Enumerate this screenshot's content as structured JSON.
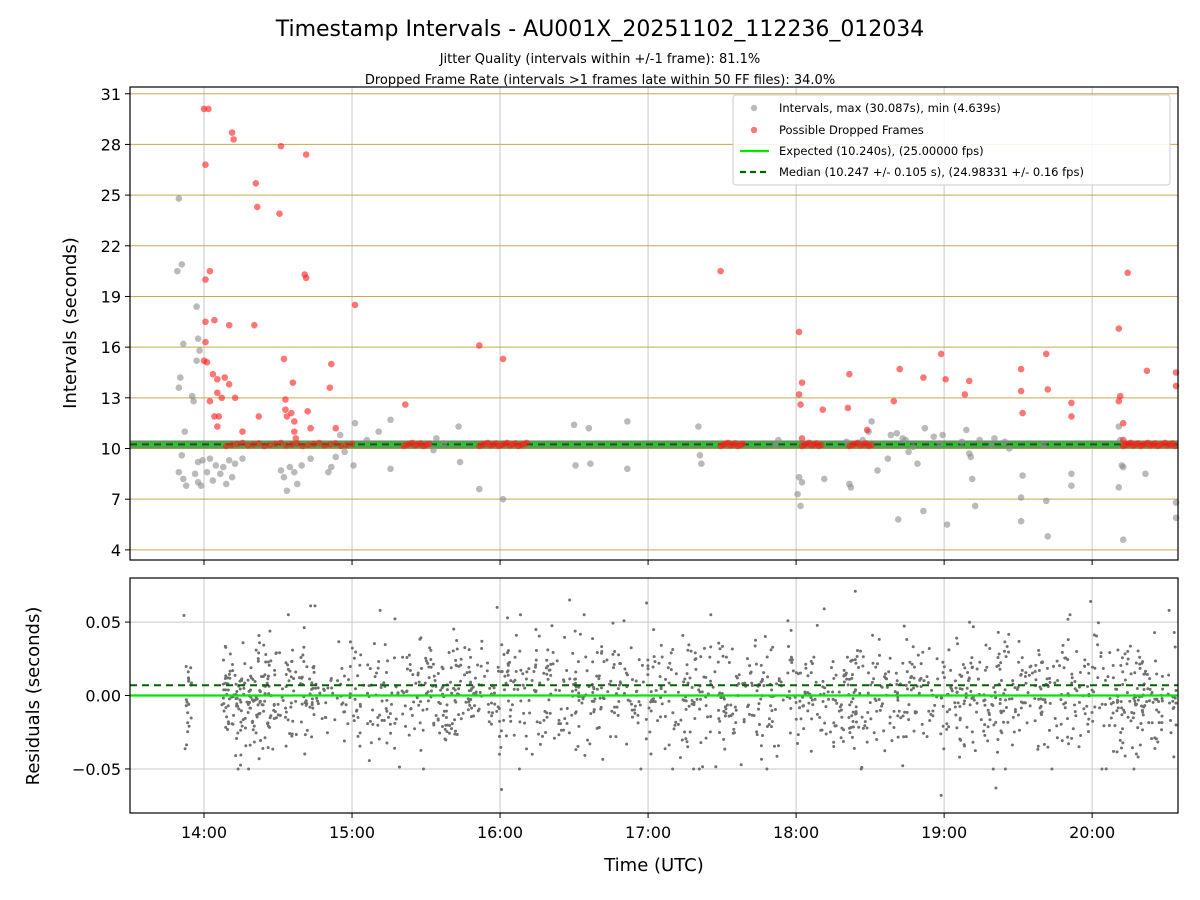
{
  "chart_data": {
    "type": "scatter",
    "title": "Timestamp Intervals - AU001X_20251102_112236_012034",
    "subtitle_lines": [
      "Jitter Quality (intervals within +/-1 frame): 81.1%",
      "Dropped Frame Rate (intervals >1 frames late within 50 FF files): 34.0%"
    ],
    "xlabel": "Time (UTC)",
    "x_unit": "hours UTC",
    "xlim": [
      13.5,
      20.58
    ],
    "x_ticks": [
      {
        "value": 14,
        "label": "14:00"
      },
      {
        "value": 15,
        "label": "15:00"
      },
      {
        "value": 16,
        "label": "16:00"
      },
      {
        "value": 17,
        "label": "17:00"
      },
      {
        "value": 18,
        "label": "18:00"
      },
      {
        "value": 19,
        "label": "19:00"
      },
      {
        "value": 20,
        "label": "20:00"
      }
    ],
    "top": {
      "ylabel": "Intervals (seconds)",
      "ylim": [
        3.4,
        31.4
      ],
      "y_ticks": [
        4,
        7,
        10,
        13,
        16,
        19,
        22,
        25,
        28,
        31
      ],
      "expected": 10.24,
      "median": 10.247,
      "legend": [
        "Intervals, max (30.087s), min (4.639s)",
        "Possible Dropped Frames",
        "Expected (10.240s), (25.00000 fps)",
        "Median (10.247 +/- 0.105 s), (24.98331 +/- 0.16 fps)"
      ],
      "interval_points": [
        [
          13.83,
          24.8
        ],
        [
          13.85,
          20.9
        ],
        [
          13.82,
          20.5
        ],
        [
          13.86,
          16.2
        ],
        [
          13.84,
          14.2
        ],
        [
          13.83,
          13.6
        ],
        [
          13.87,
          11.0
        ],
        [
          13.85,
          9.6
        ],
        [
          13.83,
          8.6
        ],
        [
          13.86,
          8.2
        ],
        [
          13.88,
          7.8
        ],
        [
          13.92,
          13.1
        ],
        [
          13.93,
          12.8
        ],
        [
          13.95,
          18.4
        ],
        [
          13.96,
          16.5
        ],
        [
          13.97,
          15.8
        ],
        [
          13.95,
          15.2
        ],
        [
          13.96,
          9.2
        ],
        [
          13.94,
          8.5
        ],
        [
          13.96,
          8.0
        ],
        [
          13.98,
          7.8
        ],
        [
          13.99,
          9.3
        ],
        [
          14.02,
          8.6
        ],
        [
          14.04,
          9.4
        ],
        [
          14.06,
          8.1
        ],
        [
          14.08,
          9.0
        ],
        [
          14.11,
          8.5
        ],
        [
          14.13,
          8.9
        ],
        [
          14.15,
          7.9
        ],
        [
          14.17,
          9.3
        ],
        [
          14.19,
          8.3
        ],
        [
          14.21,
          9.1
        ],
        [
          14.26,
          9.4
        ],
        [
          14.52,
          8.7
        ],
        [
          14.54,
          8.3
        ],
        [
          14.56,
          7.5
        ],
        [
          14.58,
          8.9
        ],
        [
          14.61,
          8.6
        ],
        [
          14.63,
          7.9
        ],
        [
          14.66,
          9.0
        ],
        [
          14.72,
          9.4
        ],
        [
          14.84,
          8.6
        ],
        [
          14.86,
          8.9
        ],
        [
          14.89,
          9.5
        ],
        [
          14.92,
          10.8
        ],
        [
          14.95,
          9.8
        ],
        [
          15.01,
          9.0
        ],
        [
          15.02,
          11.5
        ],
        [
          15.1,
          10.5
        ],
        [
          15.18,
          11.0
        ],
        [
          15.26,
          11.7
        ],
        [
          15.26,
          8.8
        ],
        [
          15.52,
          10.2
        ],
        [
          15.55,
          9.9
        ],
        [
          15.57,
          10.6
        ],
        [
          15.62,
          10.3
        ],
        [
          15.72,
          11.3
        ],
        [
          15.73,
          9.2
        ],
        [
          15.86,
          7.6
        ],
        [
          16.02,
          7.0
        ],
        [
          16.5,
          11.4
        ],
        [
          16.51,
          9.0
        ],
        [
          16.6,
          11.2
        ],
        [
          16.61,
          9.1
        ],
        [
          16.86,
          11.6
        ],
        [
          16.86,
          8.8
        ],
        [
          17.34,
          11.3
        ],
        [
          17.35,
          9.6
        ],
        [
          17.36,
          9.1
        ],
        [
          17.86,
          10.2
        ],
        [
          17.88,
          10.5
        ],
        [
          18.01,
          7.3
        ],
        [
          18.02,
          8.3
        ],
        [
          18.03,
          6.6
        ],
        [
          18.04,
          8.0
        ],
        [
          18.19,
          8.2
        ],
        [
          18.34,
          10.4
        ],
        [
          18.36,
          7.9
        ],
        [
          18.37,
          7.7
        ],
        [
          18.45,
          10.5
        ],
        [
          18.49,
          11.0
        ],
        [
          18.51,
          11.6
        ],
        [
          18.55,
          8.7
        ],
        [
          18.62,
          9.4
        ],
        [
          18.64,
          10.8
        ],
        [
          18.68,
          10.9
        ],
        [
          18.69,
          5.8
        ],
        [
          18.72,
          10.6
        ],
        [
          18.74,
          10.5
        ],
        [
          18.76,
          9.8
        ],
        [
          18.79,
          10.1
        ],
        [
          18.82,
          9.1
        ],
        [
          18.86,
          6.3
        ],
        [
          18.87,
          11.2
        ],
        [
          18.93,
          10.7
        ],
        [
          18.97,
          10.3
        ],
        [
          18.99,
          10.8
        ],
        [
          19.02,
          5.5
        ],
        [
          19.12,
          10.4
        ],
        [
          19.15,
          11.1
        ],
        [
          19.17,
          9.7
        ],
        [
          19.18,
          9.5
        ],
        [
          19.19,
          8.2
        ],
        [
          19.21,
          6.6
        ],
        [
          19.24,
          10.5
        ],
        [
          19.32,
          10.2
        ],
        [
          19.34,
          10.6
        ],
        [
          19.41,
          10.4
        ],
        [
          19.44,
          10.0
        ],
        [
          19.52,
          7.1
        ],
        [
          19.52,
          5.7
        ],
        [
          19.53,
          8.4
        ],
        [
          19.67,
          10.2
        ],
        [
          19.69,
          6.9
        ],
        [
          19.7,
          4.8
        ],
        [
          19.86,
          8.5
        ],
        [
          19.86,
          7.8
        ],
        [
          20.18,
          11.3
        ],
        [
          20.18,
          7.7
        ],
        [
          20.19,
          10.5
        ],
        [
          20.2,
          9.0
        ],
        [
          20.21,
          8.9
        ],
        [
          20.21,
          4.6
        ],
        [
          20.36,
          8.5
        ],
        [
          20.57,
          6.8
        ],
        [
          20.57,
          5.9
        ]
      ],
      "dropped_points": [
        [
          14.0,
          30.1
        ],
        [
          14.03,
          30.1
        ],
        [
          14.01,
          26.8
        ],
        [
          14.19,
          28.7
        ],
        [
          14.2,
          28.3
        ],
        [
          14.35,
          25.7
        ],
        [
          14.36,
          24.3
        ],
        [
          14.52,
          27.9
        ],
        [
          14.51,
          23.9
        ],
        [
          14.69,
          27.4
        ],
        [
          14.68,
          20.3
        ],
        [
          14.69,
          20.1
        ],
        [
          14.04,
          20.5
        ],
        [
          14.01,
          20.0
        ],
        [
          14.01,
          17.5
        ],
        [
          14.07,
          17.6
        ],
        [
          14.17,
          17.3
        ],
        [
          14.34,
          17.3
        ],
        [
          14.01,
          16.3
        ],
        [
          14.0,
          15.2
        ],
        [
          14.02,
          15.1
        ],
        [
          14.06,
          14.4
        ],
        [
          14.09,
          14.1
        ],
        [
          14.14,
          14.2
        ],
        [
          14.17,
          13.8
        ],
        [
          14.09,
          13.3
        ],
        [
          14.12,
          13.0
        ],
        [
          14.04,
          12.8
        ],
        [
          14.21,
          13.0
        ],
        [
          14.07,
          11.9
        ],
        [
          14.1,
          11.9
        ],
        [
          14.09,
          11.3
        ],
        [
          14.37,
          11.9
        ],
        [
          14.26,
          11.0
        ],
        [
          14.54,
          15.3
        ],
        [
          14.6,
          13.9
        ],
        [
          14.55,
          12.9
        ],
        [
          14.55,
          12.3
        ],
        [
          14.56,
          11.9
        ],
        [
          14.59,
          12.1
        ],
        [
          14.61,
          11.6
        ],
        [
          14.61,
          11.0
        ],
        [
          14.62,
          10.6
        ],
        [
          14.7,
          12.2
        ],
        [
          14.72,
          11.2
        ],
        [
          14.86,
          15.0
        ],
        [
          14.85,
          13.6
        ],
        [
          14.89,
          11.2
        ],
        [
          15.02,
          18.5
        ],
        [
          15.36,
          12.6
        ],
        [
          15.86,
          16.1
        ],
        [
          16.02,
          15.3
        ],
        [
          17.49,
          20.5
        ],
        [
          18.02,
          16.9
        ],
        [
          18.02,
          13.2
        ],
        [
          18.03,
          12.6
        ],
        [
          18.04,
          13.9
        ],
        [
          18.04,
          10.6
        ],
        [
          18.18,
          12.3
        ],
        [
          18.35,
          12.4
        ],
        [
          18.36,
          14.4
        ],
        [
          18.48,
          11.1
        ],
        [
          18.66,
          12.8
        ],
        [
          18.7,
          14.7
        ],
        [
          18.86,
          14.2
        ],
        [
          18.98,
          15.6
        ],
        [
          19.01,
          14.1
        ],
        [
          19.14,
          13.2
        ],
        [
          19.17,
          14.0
        ],
        [
          19.52,
          13.4
        ],
        [
          19.53,
          12.1
        ],
        [
          19.52,
          14.7
        ],
        [
          19.69,
          15.6
        ],
        [
          19.7,
          13.5
        ],
        [
          19.86,
          12.7
        ],
        [
          19.86,
          11.9
        ],
        [
          20.18,
          17.1
        ],
        [
          20.18,
          12.8
        ],
        [
          20.19,
          13.1
        ],
        [
          20.21,
          11.5
        ],
        [
          20.21,
          10.5
        ],
        [
          20.24,
          20.4
        ],
        [
          20.37,
          14.6
        ],
        [
          20.57,
          14.5
        ],
        [
          20.58,
          13.7
        ]
      ],
      "dropped_clusters": [
        [
          14.15,
          15.0,
          24
        ],
        [
          15.35,
          15.52,
          10
        ],
        [
          15.86,
          16.18,
          18
        ],
        [
          17.49,
          17.64,
          10
        ],
        [
          18.04,
          18.17,
          9
        ],
        [
          18.36,
          18.51,
          9
        ],
        [
          20.21,
          20.56,
          22
        ]
      ]
    },
    "bottom": {
      "ylabel": "Residuals (seconds)",
      "ylim": [
        -0.08,
        0.08
      ],
      "y_ticks": [
        {
          "value": 0.05,
          "label": "0.05"
        },
        {
          "value": 0.0,
          "label": "0.00"
        },
        {
          "value": -0.05,
          "label": "−0.05"
        }
      ],
      "expected_residual": 0.0,
      "median_residual": 0.007,
      "residual_x_range": [
        13.86,
        20.58
      ],
      "residual_point_count": 1700,
      "residual_std": 0.02,
      "residual_outliers": [
        [
          16.01,
          -0.064
        ],
        [
          18.98,
          -0.068
        ],
        [
          19.35,
          -0.063
        ],
        [
          18.4,
          0.071
        ],
        [
          16.47,
          0.065
        ],
        [
          19.99,
          0.064
        ],
        [
          16.99,
          0.063
        ],
        [
          14.72,
          0.061
        ],
        [
          14.75,
          0.061
        ],
        [
          15.98,
          0.06
        ],
        [
          20.52,
          0.058
        ],
        [
          18.19,
          0.059
        ],
        [
          15.19,
          0.058
        ]
      ]
    }
  },
  "colors": {
    "interval": "#8c8c8c",
    "dropped": "#ff1a1a",
    "expected_line": "#00e600",
    "median_line": "#006400",
    "residual_point": "#707070",
    "grid": "#c8c8c8",
    "hgrid_top": "#c8aa4a"
  }
}
